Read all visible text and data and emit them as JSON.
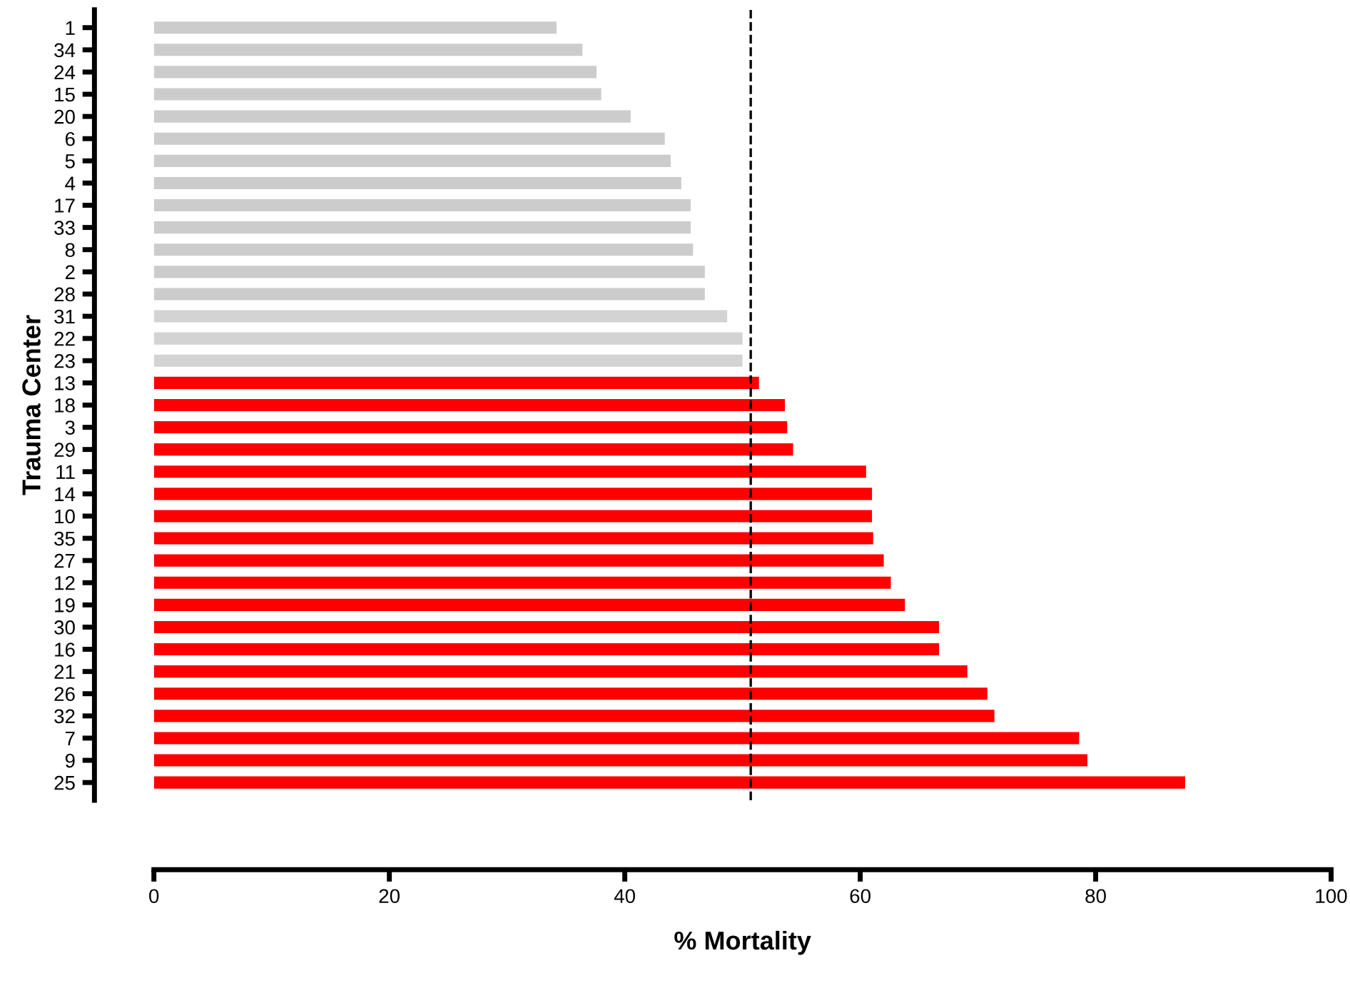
{
  "chart_data": {
    "type": "bar",
    "orientation": "horizontal",
    "xlabel": "% Mortality",
    "ylabel": "Trauma Center",
    "categories": [
      "1",
      "34",
      "24",
      "15",
      "20",
      "6",
      "5",
      "4",
      "17",
      "33",
      "8",
      "2",
      "28",
      "31",
      "22",
      "23",
      "13",
      "18",
      "3",
      "29",
      "11",
      "14",
      "10",
      "35",
      "27",
      "12",
      "19",
      "30",
      "16",
      "21",
      "26",
      "32",
      "7",
      "9",
      "25"
    ],
    "values": [
      34.2,
      36.4,
      37.6,
      38.0,
      40.5,
      43.4,
      43.9,
      44.8,
      45.6,
      45.6,
      45.8,
      46.8,
      46.8,
      48.7,
      50.0,
      50.0,
      51.4,
      53.6,
      53.8,
      54.3,
      60.5,
      61.0,
      61.0,
      61.1,
      62.0,
      62.6,
      63.8,
      66.7,
      66.7,
      69.1,
      70.8,
      71.4,
      78.6,
      79.3,
      87.6
    ],
    "colors": [
      "#cccccc",
      "#cccccc",
      "#cccccc",
      "#cccccc",
      "#cccccc",
      "#cccccc",
      "#cccccc",
      "#cccccc",
      "#cccccc",
      "#cccccc",
      "#cccccc",
      "#cccccc",
      "#cccccc",
      "#d3d3d3",
      "#d3d3d3",
      "#d3d3d3",
      "#ff0000",
      "#ff0000",
      "#ff0000",
      "#ff0000",
      "#ff0000",
      "#ff0000",
      "#ff0000",
      "#ff0000",
      "#ff0000",
      "#ff0000",
      "#ff0000",
      "#ff0000",
      "#ff0000",
      "#ff0000",
      "#ff0000",
      "#ff0000",
      "#ff0000",
      "#ff0000",
      "#ff0000"
    ],
    "xlim": [
      0,
      100
    ],
    "xticks": [
      0,
      20,
      40,
      60,
      80,
      100
    ],
    "ref_lines": [
      {
        "axis": "x",
        "value": 50.7,
        "color": "#000000",
        "line_style": "dashed"
      }
    ],
    "grid": false,
    "legend": false
  }
}
